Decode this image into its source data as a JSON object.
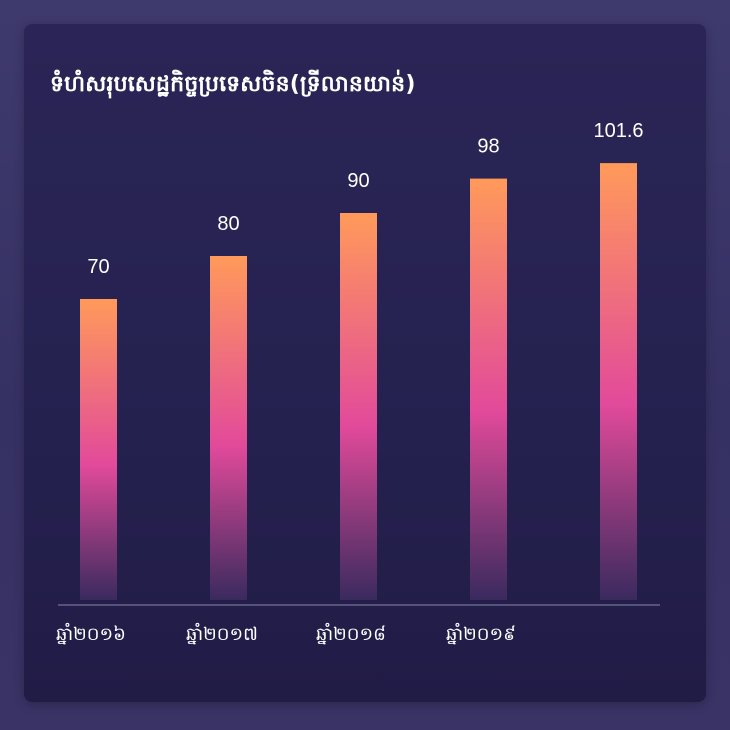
{
  "chart_data": {
    "type": "bar",
    "title": "ទំហំសរុបសេដ្ឋកិច្ចប្រទេសចិន(ទ្រីលានយាន់)",
    "categories": [
      "ឆ្នាំ២០១៦",
      "ឆ្នាំ២០១៧",
      "ឆ្នាំ២០១៨",
      "ឆ្នាំ២០១៩",
      ""
    ],
    "values": [
      70,
      80,
      90,
      98,
      101.6
    ],
    "value_labels": [
      "70",
      "80",
      "90",
      "98",
      "101.6"
    ],
    "xlabel": "",
    "ylabel": "",
    "grid": false,
    "legend": "none",
    "colors": {
      "bar_top": "#ff9a5a",
      "bar_mid": "#e24a9a",
      "bar_bottom": "#3a2a5e",
      "axis": "#8a86b0",
      "text": "#ffffff"
    }
  }
}
